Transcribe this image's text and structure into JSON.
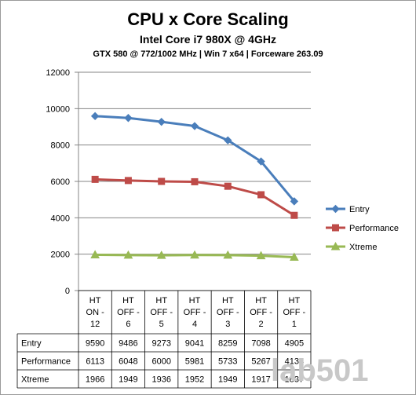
{
  "header": {
    "title": "CPU x Core Scaling",
    "subtitle": "Intel Core i7 980X @ 4GHz",
    "subtitle2": "GTX 580 @ 772/1002 MHz  |  Win 7 x64  |  Forceware 263.09"
  },
  "watermark": "lab501",
  "chart_data": {
    "type": "line",
    "categories": [
      [
        "HT",
        "ON -",
        "12"
      ],
      [
        "HT",
        "OFF -",
        "6"
      ],
      [
        "HT",
        "OFF -",
        "5"
      ],
      [
        "HT",
        "OFF -",
        "4"
      ],
      [
        "HT",
        "OFF -",
        "3"
      ],
      [
        "HT",
        "OFF -",
        "2"
      ],
      [
        "HT",
        "OFF -",
        "1"
      ]
    ],
    "series": [
      {
        "name": "Entry",
        "color": "#4a7ebb",
        "marker": "diamond",
        "values": [
          9590,
          9486,
          9273,
          9041,
          8259,
          7098,
          4905
        ]
      },
      {
        "name": "Performance",
        "color": "#be4b48",
        "marker": "square",
        "values": [
          6113,
          6048,
          6000,
          5981,
          5733,
          5267,
          4134
        ]
      },
      {
        "name": "Xtreme",
        "color": "#98b954",
        "marker": "triangle",
        "values": [
          1966,
          1949,
          1936,
          1952,
          1949,
          1917,
          1837
        ]
      }
    ],
    "ylim": [
      0,
      12000
    ],
    "yticks": [
      0,
      2000,
      4000,
      6000,
      8000,
      10000,
      12000
    ],
    "grid": true,
    "legend": "right",
    "data_table": true
  }
}
